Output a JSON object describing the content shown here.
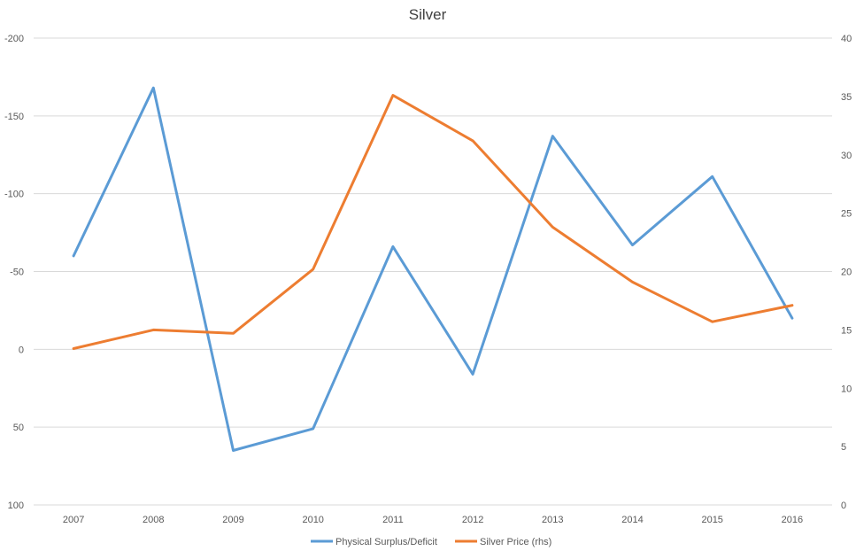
{
  "chart_data": {
    "type": "line",
    "title": "Silver",
    "categories": [
      "2007",
      "2008",
      "2009",
      "2010",
      "2011",
      "2012",
      "2013",
      "2014",
      "2015",
      "2016"
    ],
    "y_left": {
      "reversed": true,
      "range": [
        100,
        -200
      ],
      "ticks": [
        -200,
        -150,
        -100,
        -50,
        0,
        50,
        100
      ],
      "tick_labels": [
        "-200",
        "-150",
        "-100",
        "-50",
        "0",
        "50",
        "100"
      ]
    },
    "y_right": {
      "range": [
        0,
        40
      ],
      "ticks": [
        0,
        5,
        10,
        15,
        20,
        25,
        30,
        35,
        40
      ],
      "tick_labels": [
        "0",
        "5",
        "10",
        "15",
        "20",
        "25",
        "30",
        "35",
        "40"
      ]
    },
    "grid": true,
    "legend_position": "bottom",
    "series": [
      {
        "name": "Physical Surplus/Deficit",
        "axis": "left",
        "color": "#5B9BD5",
        "values": [
          -60,
          -168,
          65,
          51,
          -66,
          16,
          -137,
          -67,
          -111,
          -20
        ]
      },
      {
        "name": "Silver Price (rhs)",
        "axis": "right",
        "color": "#ED7D31",
        "values": [
          13.4,
          15.0,
          14.7,
          20.2,
          35.1,
          31.2,
          23.8,
          19.1,
          15.7,
          17.1
        ]
      }
    ]
  }
}
